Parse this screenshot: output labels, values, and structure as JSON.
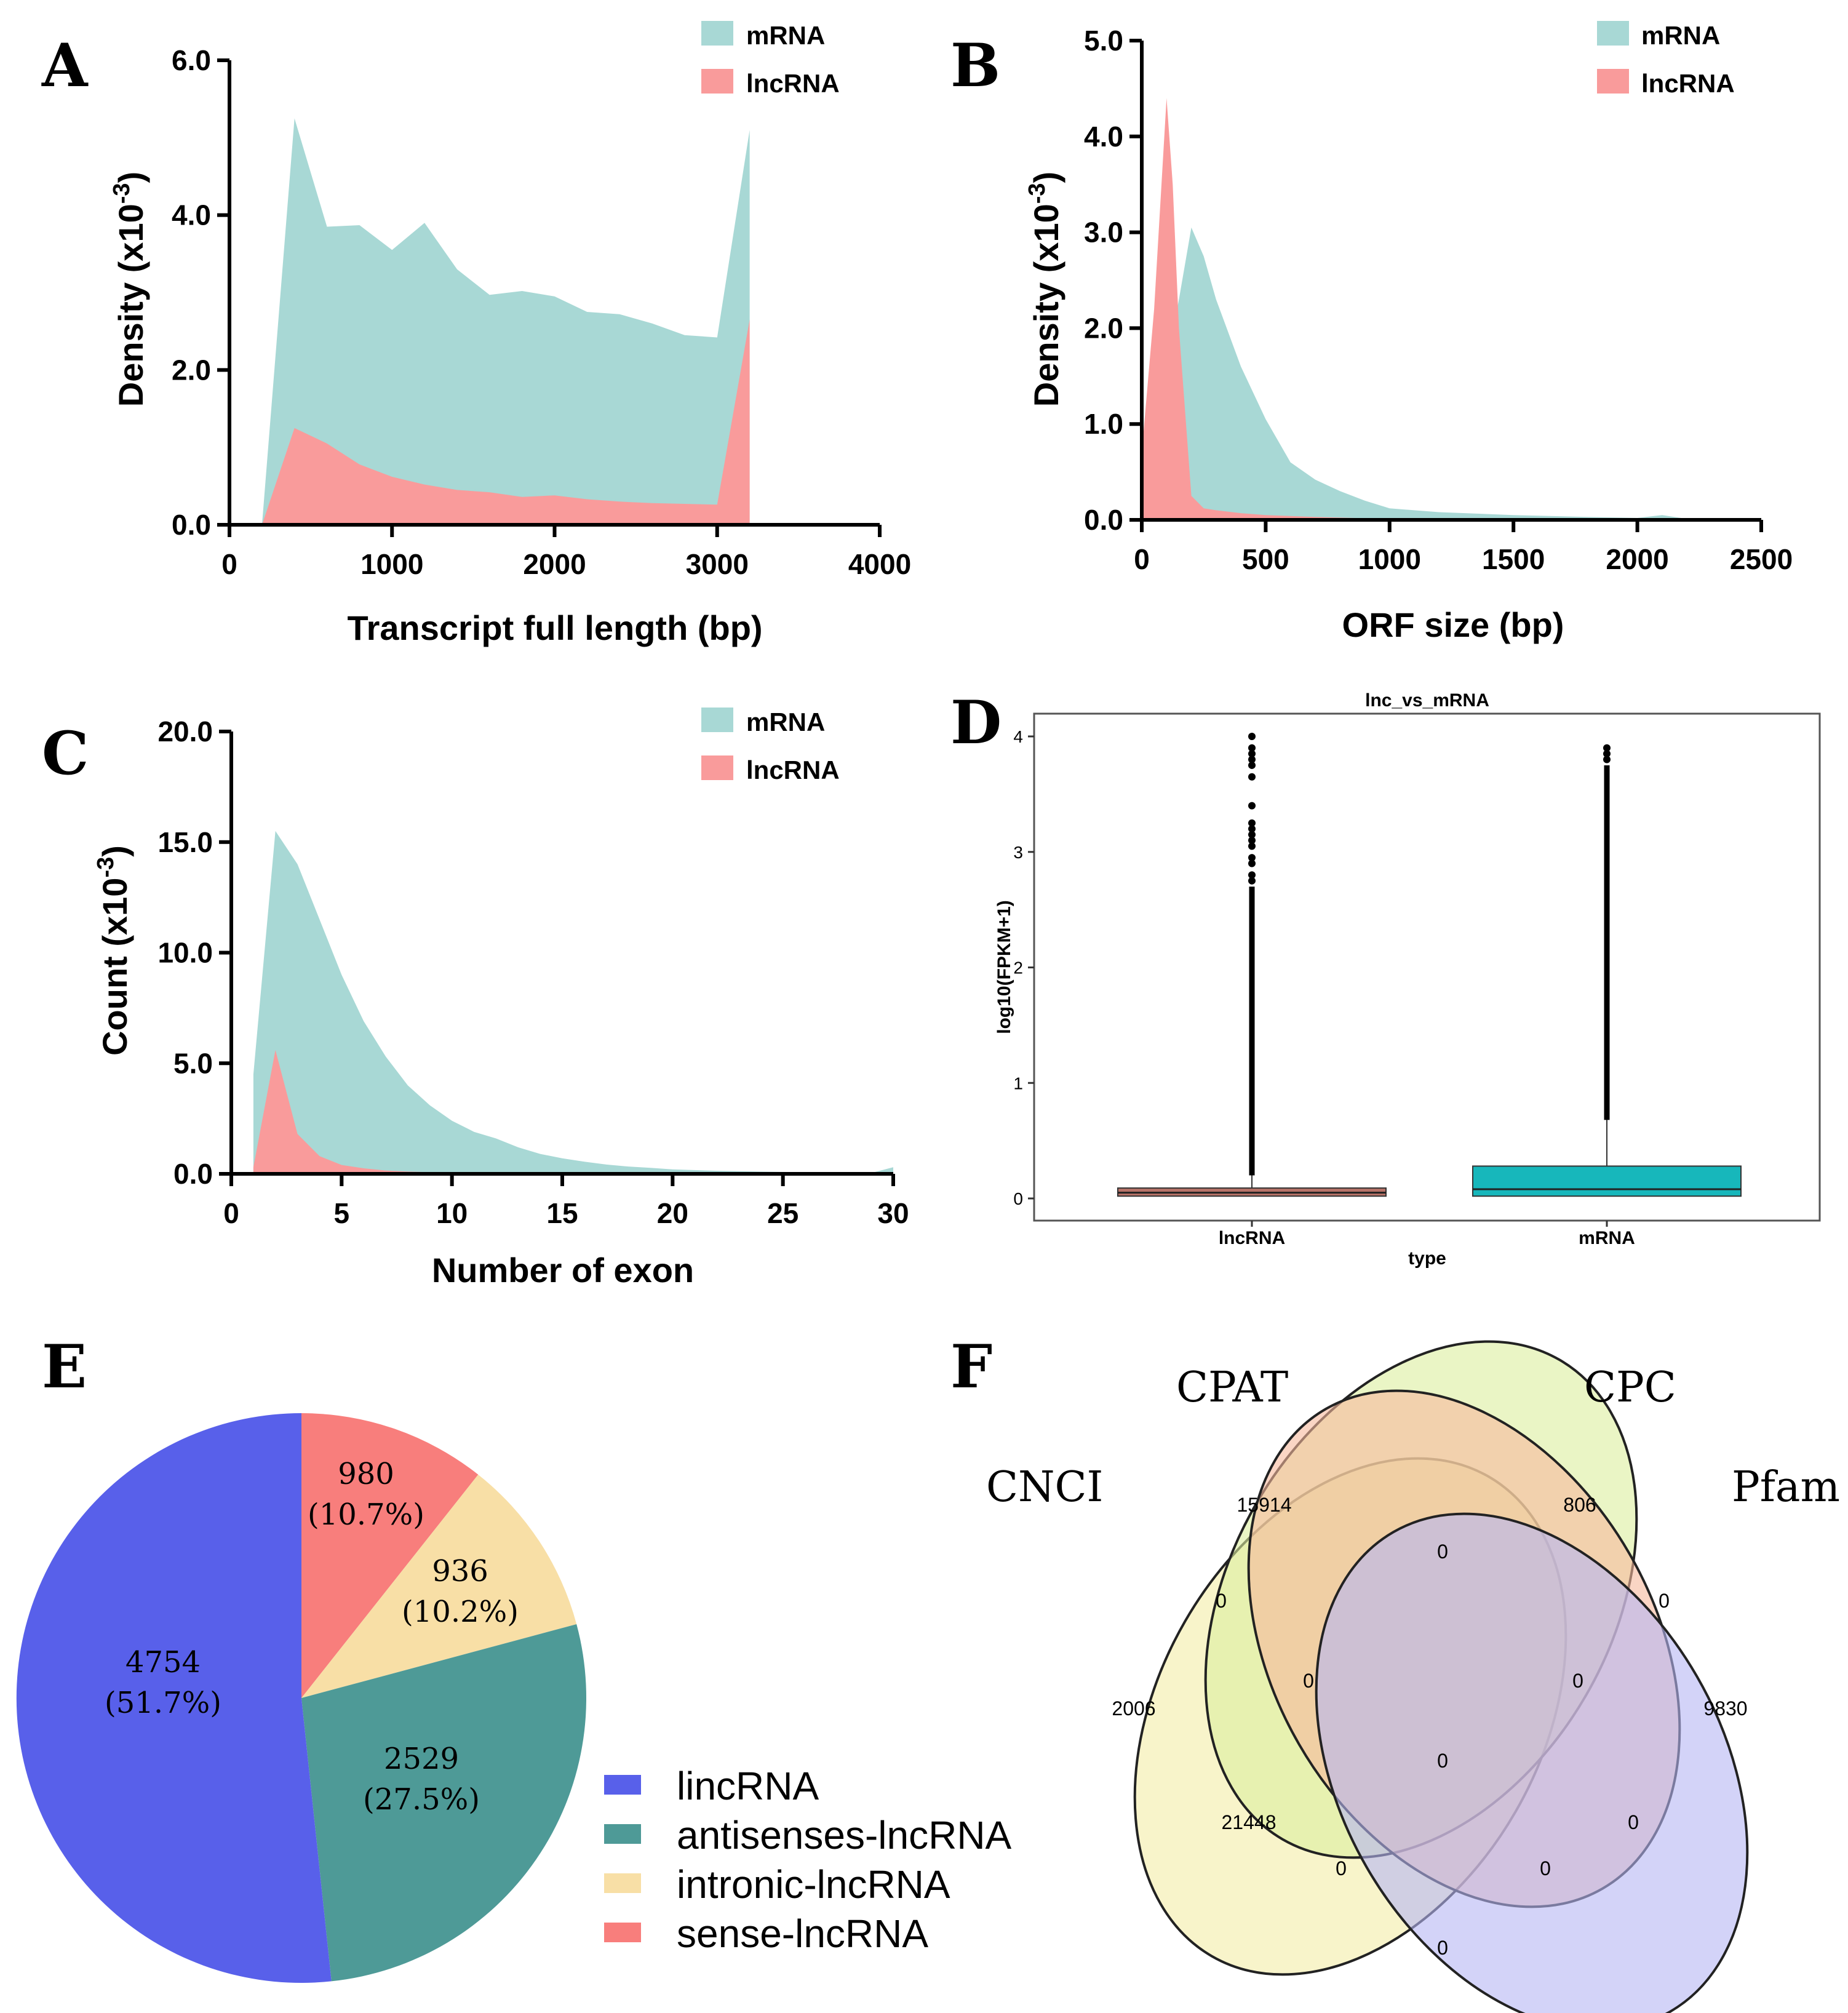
{
  "chart_data": [
    {
      "id": "A",
      "type": "area",
      "panel_letter": "A",
      "xlabel": "Transcript full length (bp)",
      "ylabel": "Density (x10",
      "ylabel_exp": "-3",
      "ylabel_close": ")",
      "xlim": [
        0,
        4000
      ],
      "ylim": [
        0,
        6.0
      ],
      "xticks": [
        0,
        1000,
        2000,
        3000,
        4000
      ],
      "xtick_labels": [
        "0",
        "1000",
        "2000",
        "3000",
        "4000"
      ],
      "yticks": [
        0,
        2.0,
        4.0,
        6.0
      ],
      "ytick_labels": [
        "0.0",
        "2.0",
        "4.0",
        "6.0"
      ],
      "legend": [
        "mRNA",
        "lncRNA"
      ],
      "series": [
        {
          "name": "mRNA",
          "color": "#a8d8d5",
          "x": [
            200,
            400,
            600,
            800,
            1000,
            1200,
            1400,
            1600,
            1800,
            2000,
            2200,
            2400,
            2600,
            2800,
            3000,
            3200
          ],
          "y": [
            0,
            5.25,
            3.85,
            3.87,
            3.55,
            3.9,
            3.3,
            2.97,
            3.02,
            2.95,
            2.75,
            2.72,
            2.6,
            2.45,
            2.42,
            5.1
          ]
        },
        {
          "name": "lncRNA",
          "color": "#f99b9b",
          "x": [
            200,
            400,
            600,
            800,
            1000,
            1200,
            1400,
            1600,
            1800,
            2000,
            2200,
            2400,
            2600,
            2800,
            3000,
            3200
          ],
          "y": [
            0,
            1.25,
            1.05,
            0.78,
            0.62,
            0.52,
            0.45,
            0.42,
            0.36,
            0.38,
            0.33,
            0.3,
            0.28,
            0.27,
            0.26,
            2.65
          ]
        }
      ]
    },
    {
      "id": "B",
      "type": "area",
      "panel_letter": "B",
      "xlabel": "ORF size (bp)",
      "ylabel": "Density (x10",
      "ylabel_exp": "-3",
      "ylabel_close": ")",
      "xlim": [
        0,
        2500
      ],
      "ylim": [
        0,
        5.0
      ],
      "xticks": [
        0,
        500,
        1000,
        1500,
        2000,
        2500
      ],
      "xtick_labels": [
        "0",
        "500",
        "1000",
        "1500",
        "2000",
        "2500"
      ],
      "yticks": [
        0,
        1.0,
        2.0,
        3.0,
        4.0,
        5.0
      ],
      "ytick_labels": [
        "0.0",
        "1.0",
        "2.0",
        "3.0",
        "4.0",
        "5.0"
      ],
      "legend": [
        "mRNA",
        "lncRNA"
      ],
      "series": [
        {
          "name": "mRNA",
          "color": "#a8d8d5",
          "x": [
            0,
            100,
            150,
            200,
            250,
            300,
            400,
            500,
            600,
            700,
            800,
            900,
            1000,
            1200,
            1500,
            1800,
            2000,
            2100,
            2200,
            2500
          ],
          "y": [
            0,
            1.6,
            2.3,
            3.05,
            2.75,
            2.3,
            1.6,
            1.05,
            0.6,
            0.42,
            0.3,
            0.2,
            0.12,
            0.08,
            0.05,
            0.03,
            0.02,
            0.05,
            0.01,
            0
          ]
        },
        {
          "name": "lncRNA",
          "color": "#f99b9b",
          "x": [
            0,
            50,
            100,
            125,
            150,
            200,
            250,
            300,
            400,
            500,
            700,
            1000,
            2500
          ],
          "y": [
            0.7,
            2.2,
            4.4,
            3.5,
            2.0,
            0.25,
            0.12,
            0.1,
            0.07,
            0.05,
            0.03,
            0.01,
            0
          ]
        }
      ]
    },
    {
      "id": "C",
      "type": "area",
      "panel_letter": "C",
      "xlabel": "Number of exon",
      "ylabel": "Count (x10",
      "ylabel_exp": "-3",
      "ylabel_close": ")",
      "xlim": [
        0,
        30
      ],
      "ylim": [
        0,
        20.0
      ],
      "xticks": [
        0,
        5,
        10,
        15,
        20,
        25,
        30
      ],
      "xtick_labels": [
        "0",
        "5",
        "10",
        "15",
        "20",
        "25",
        "30"
      ],
      "yticks": [
        0,
        5.0,
        10.0,
        15.0,
        20.0
      ],
      "ytick_labels": [
        "0.0",
        "5.0",
        "10.0",
        "15.0",
        "20.0"
      ],
      "legend": [
        "mRNA",
        "lncRNA"
      ],
      "series": [
        {
          "name": "mRNA",
          "color": "#a8d8d5",
          "x": [
            1,
            2,
            3,
            4,
            5,
            6,
            7,
            8,
            9,
            10,
            11,
            12,
            13,
            14,
            15,
            16,
            17,
            18,
            19,
            20,
            22,
            24,
            26,
            28,
            29,
            30
          ],
          "y": [
            4.5,
            15.5,
            14.0,
            11.5,
            9.0,
            6.9,
            5.3,
            4.0,
            3.1,
            2.4,
            1.9,
            1.6,
            1.2,
            0.9,
            0.7,
            0.55,
            0.42,
            0.33,
            0.27,
            0.2,
            0.14,
            0.1,
            0.07,
            0.05,
            0.04,
            0.3
          ]
        },
        {
          "name": "lncRNA",
          "color": "#f99b9b",
          "x": [
            1,
            2,
            3,
            4,
            5,
            6,
            7,
            8,
            10,
            15,
            20,
            30
          ],
          "y": [
            0.3,
            5.6,
            1.8,
            0.8,
            0.4,
            0.25,
            0.15,
            0.1,
            0.05,
            0.02,
            0.01,
            0
          ]
        }
      ]
    },
    {
      "id": "D",
      "type": "box",
      "panel_letter": "D",
      "title": "lnc_vs_mRNA",
      "xlabel": "type",
      "ylabel": "log10(FPKM+1)",
      "ylim": [
        -0.1,
        4.2
      ],
      "yticks": [
        0,
        1,
        2,
        3,
        4
      ],
      "ytick_labels": [
        "0",
        "1",
        "2",
        "3",
        "4"
      ],
      "categories": [
        "lncRNA",
        "mRNA"
      ],
      "boxes": [
        {
          "name": "lncRNA",
          "color": "#b87368",
          "q1": 0.02,
          "median": 0.05,
          "q3": 0.09,
          "whisker_low": 0.0,
          "whisker_high": 0.2,
          "outlier_dense_from": 0.2,
          "outlier_dense_to": 2.7,
          "outliers": [
            2.75,
            2.8,
            2.9,
            2.95,
            3.05,
            3.1,
            3.15,
            3.2,
            3.25,
            3.4,
            3.65,
            3.75,
            3.8,
            3.85,
            3.9,
            4.0
          ]
        },
        {
          "name": "mRNA",
          "color": "#17b7bb",
          "q1": 0.02,
          "median": 0.08,
          "q3": 0.28,
          "whisker_low": 0.0,
          "whisker_high": 0.68,
          "outlier_dense_from": 0.68,
          "outlier_dense_to": 3.75,
          "outliers": [
            3.8,
            3.85,
            3.9
          ]
        }
      ]
    },
    {
      "id": "E",
      "type": "pie",
      "panel_letter": "E",
      "slices": [
        {
          "name": "lincRNA",
          "value": 4754,
          "percent": "51.7%",
          "color": "#5860ea"
        },
        {
          "name": "antisenses-lncRNA",
          "value": 2529,
          "percent": "27.5%",
          "color": "#4e9a97"
        },
        {
          "name": "intronic-lncRNA",
          "value": 936,
          "percent": "10.2%",
          "color": "#f8dfa6"
        },
        {
          "name": "sense-lncRNA",
          "value": 980,
          "percent": "10.7%",
          "color": "#f87e7c"
        }
      ],
      "legend_order": [
        "lincRNA",
        "antisenses-lncRNA",
        "intronic-lncRNA",
        "sense-lncRNA"
      ]
    },
    {
      "id": "F",
      "type": "venn",
      "panel_letter": "F",
      "sets": [
        {
          "name": "CNCI",
          "color": "#f6f0b8"
        },
        {
          "name": "CPAT",
          "color": "#dcef9e"
        },
        {
          "name": "CPC",
          "color": "#f7b99c"
        },
        {
          "name": "Pfam",
          "color": "#b6b5f3"
        }
      ],
      "regions": [
        {
          "sets": "CPAT",
          "value": "15914"
        },
        {
          "sets": "CPC",
          "value": "806"
        },
        {
          "sets": "CNCI",
          "value": "2006"
        },
        {
          "sets": "Pfam",
          "value": "9830"
        },
        {
          "sets": "CPAT&CPC",
          "value": "0"
        },
        {
          "sets": "CNCI&CPAT",
          "value": "0"
        },
        {
          "sets": "CPC&Pfam",
          "value": "0"
        },
        {
          "sets": "CNCI&CPAT&CPC",
          "value": "0"
        },
        {
          "sets": "CPAT&CPC&Pfam",
          "value": "0"
        },
        {
          "sets": "ALL",
          "value": "0"
        },
        {
          "sets": "CNCI&CPC",
          "value": "21448"
        },
        {
          "sets": "CPAT&Pfam",
          "value": "0"
        },
        {
          "sets": "CNCI&CPC&Pfam",
          "value": "0"
        },
        {
          "sets": "CNCI&CPAT&Pfam",
          "value": "0"
        },
        {
          "sets": "CNCI&Pfam",
          "value": "0"
        }
      ]
    }
  ]
}
